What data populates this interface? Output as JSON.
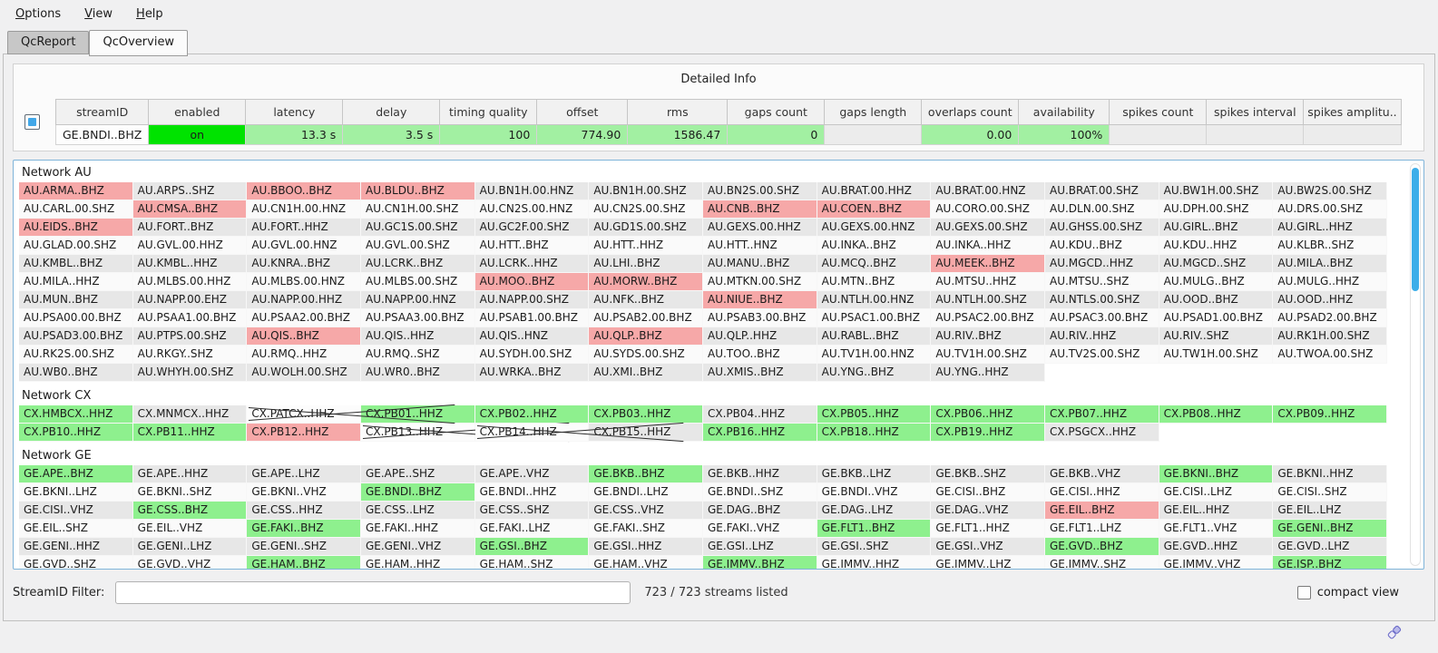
{
  "menu": {
    "items": [
      {
        "label": "Options"
      },
      {
        "label": "View"
      },
      {
        "label": "Help"
      }
    ]
  },
  "tabs": [
    {
      "label": "QcReport",
      "active": false
    },
    {
      "label": "QcOverview",
      "active": true
    }
  ],
  "detail_panel": {
    "title": "Detailed Info",
    "columns": [
      "streamID",
      "enabled",
      "latency",
      "delay",
      "timing quality",
      "offset",
      "rms",
      "gaps count",
      "gaps length",
      "overlaps count",
      "availability",
      "spikes count",
      "spikes interval",
      "spikes amplitu.."
    ],
    "row": {
      "cells": [
        "GE.BNDI..BHZ",
        "on",
        "13.3 s",
        "3.5 s",
        "100",
        "774.90",
        "1586.47",
        "0",
        "",
        "0.00",
        "100%",
        "",
        "",
        ""
      ],
      "cell_styles": [
        "plain",
        "on",
        "val",
        "val",
        "val",
        "val",
        "val",
        "val",
        "empty",
        "val",
        "val",
        "empty",
        "empty",
        "empty"
      ]
    }
  },
  "legend_note": "cell codes: d=default-gray, w=default-white, g=good-green, p=problem-pink, x=disabled-crossed, n=empty",
  "networks": [
    {
      "name": "Network AU",
      "rows": [
        [
          [
            "AU.ARMA..BHZ",
            "p"
          ],
          [
            "AU.ARPS..SHZ",
            "d"
          ],
          [
            "AU.BBOO..BHZ",
            "p"
          ],
          [
            "AU.BLDU..BHZ",
            "p"
          ],
          [
            "AU.BN1H.00.HNZ",
            "d"
          ],
          [
            "AU.BN1H.00.SHZ",
            "d"
          ],
          [
            "AU.BN2S.00.SHZ",
            "d"
          ],
          [
            "AU.BRAT.00.HHZ",
            "d"
          ],
          [
            "AU.BRAT.00.HNZ",
            "d"
          ],
          [
            "AU.BRAT.00.SHZ",
            "d"
          ],
          [
            "AU.BW1H.00.SHZ",
            "d"
          ],
          [
            "AU.BW2S.00.SHZ",
            "d"
          ]
        ],
        [
          [
            "AU.CARL.00.SHZ",
            "w"
          ],
          [
            "AU.CMSA..BHZ",
            "p"
          ],
          [
            "AU.CN1H.00.HNZ",
            "w"
          ],
          [
            "AU.CN1H.00.SHZ",
            "w"
          ],
          [
            "AU.CN2S.00.HNZ",
            "w"
          ],
          [
            "AU.CN2S.00.SHZ",
            "w"
          ],
          [
            "AU.CNB..BHZ",
            "p"
          ],
          [
            "AU.COEN..BHZ",
            "p"
          ],
          [
            "AU.CORO.00.SHZ",
            "w"
          ],
          [
            "AU.DLN.00.SHZ",
            "w"
          ],
          [
            "AU.DPH.00.SHZ",
            "w"
          ],
          [
            "AU.DRS.00.SHZ",
            "w"
          ]
        ],
        [
          [
            "AU.EIDS..BHZ",
            "p"
          ],
          [
            "AU.FORT..BHZ",
            "d"
          ],
          [
            "AU.FORT..HHZ",
            "d"
          ],
          [
            "AU.GC1S.00.SHZ",
            "d"
          ],
          [
            "AU.GC2F.00.SHZ",
            "d"
          ],
          [
            "AU.GD1S.00.SHZ",
            "d"
          ],
          [
            "AU.GEXS.00.HHZ",
            "d"
          ],
          [
            "AU.GEXS.00.HNZ",
            "d"
          ],
          [
            "AU.GEXS.00.SHZ",
            "d"
          ],
          [
            "AU.GHSS.00.SHZ",
            "d"
          ],
          [
            "AU.GIRL..BHZ",
            "d"
          ],
          [
            "AU.GIRL..HHZ",
            "d"
          ]
        ],
        [
          [
            "AU.GLAD.00.SHZ",
            "w"
          ],
          [
            "AU.GVL.00.HHZ",
            "w"
          ],
          [
            "AU.GVL.00.HNZ",
            "w"
          ],
          [
            "AU.GVL.00.SHZ",
            "w"
          ],
          [
            "AU.HTT..BHZ",
            "w"
          ],
          [
            "AU.HTT..HHZ",
            "w"
          ],
          [
            "AU.HTT..HNZ",
            "w"
          ],
          [
            "AU.INKA..BHZ",
            "w"
          ],
          [
            "AU.INKA..HHZ",
            "w"
          ],
          [
            "AU.KDU..BHZ",
            "w"
          ],
          [
            "AU.KDU..HHZ",
            "w"
          ],
          [
            "AU.KLBR..SHZ",
            "w"
          ]
        ],
        [
          [
            "AU.KMBL..BHZ",
            "d"
          ],
          [
            "AU.KMBL..HHZ",
            "d"
          ],
          [
            "AU.KNRA..BHZ",
            "d"
          ],
          [
            "AU.LCRK..BHZ",
            "d"
          ],
          [
            "AU.LCRK..HHZ",
            "d"
          ],
          [
            "AU.LHI..BHZ",
            "d"
          ],
          [
            "AU.MANU..BHZ",
            "d"
          ],
          [
            "AU.MCQ..BHZ",
            "d"
          ],
          [
            "AU.MEEK..BHZ",
            "p"
          ],
          [
            "AU.MGCD..HHZ",
            "d"
          ],
          [
            "AU.MGCD..SHZ",
            "d"
          ],
          [
            "AU.MILA..BHZ",
            "d"
          ]
        ],
        [
          [
            "AU.MILA..HHZ",
            "w"
          ],
          [
            "AU.MLBS.00.HHZ",
            "w"
          ],
          [
            "AU.MLBS.00.HNZ",
            "w"
          ],
          [
            "AU.MLBS.00.SHZ",
            "w"
          ],
          [
            "AU.MOO..BHZ",
            "p"
          ],
          [
            "AU.MORW..BHZ",
            "p"
          ],
          [
            "AU.MTKN.00.SHZ",
            "w"
          ],
          [
            "AU.MTN..BHZ",
            "w"
          ],
          [
            "AU.MTSU..HHZ",
            "w"
          ],
          [
            "AU.MTSU..SHZ",
            "w"
          ],
          [
            "AU.MULG..BHZ",
            "w"
          ],
          [
            "AU.MULG..HHZ",
            "w"
          ]
        ],
        [
          [
            "AU.MUN..BHZ",
            "d"
          ],
          [
            "AU.NAPP.00.EHZ",
            "d"
          ],
          [
            "AU.NAPP.00.HHZ",
            "d"
          ],
          [
            "AU.NAPP.00.HNZ",
            "d"
          ],
          [
            "AU.NAPP.00.SHZ",
            "d"
          ],
          [
            "AU.NFK..BHZ",
            "d"
          ],
          [
            "AU.NIUE..BHZ",
            "p"
          ],
          [
            "AU.NTLH.00.HNZ",
            "d"
          ],
          [
            "AU.NTLH.00.SHZ",
            "d"
          ],
          [
            "AU.NTLS.00.SHZ",
            "d"
          ],
          [
            "AU.OOD..BHZ",
            "d"
          ],
          [
            "AU.OOD..HHZ",
            "d"
          ]
        ],
        [
          [
            "AU.PSA00.00.BHZ",
            "w"
          ],
          [
            "AU.PSAA1.00.BHZ",
            "w"
          ],
          [
            "AU.PSAA2.00.BHZ",
            "w"
          ],
          [
            "AU.PSAA3.00.BHZ",
            "w"
          ],
          [
            "AU.PSAB1.00.BHZ",
            "w"
          ],
          [
            "AU.PSAB2.00.BHZ",
            "w"
          ],
          [
            "AU.PSAB3.00.BHZ",
            "w"
          ],
          [
            "AU.PSAC1.00.BHZ",
            "w"
          ],
          [
            "AU.PSAC2.00.BHZ",
            "w"
          ],
          [
            "AU.PSAC3.00.BHZ",
            "w"
          ],
          [
            "AU.PSAD1.00.BHZ",
            "w"
          ],
          [
            "AU.PSAD2.00.BHZ",
            "w"
          ]
        ],
        [
          [
            "AU.PSAD3.00.BHZ",
            "d"
          ],
          [
            "AU.PTPS.00.SHZ",
            "d"
          ],
          [
            "AU.QIS..BHZ",
            "p"
          ],
          [
            "AU.QIS..HHZ",
            "d"
          ],
          [
            "AU.QIS..HNZ",
            "d"
          ],
          [
            "AU.QLP..BHZ",
            "p"
          ],
          [
            "AU.QLP..HHZ",
            "d"
          ],
          [
            "AU.RABL..BHZ",
            "d"
          ],
          [
            "AU.RIV..BHZ",
            "d"
          ],
          [
            "AU.RIV..HHZ",
            "d"
          ],
          [
            "AU.RIV..SHZ",
            "d"
          ],
          [
            "AU.RK1H.00.SHZ",
            "d"
          ]
        ],
        [
          [
            "AU.RK2S.00.SHZ",
            "w"
          ],
          [
            "AU.RKGY..SHZ",
            "w"
          ],
          [
            "AU.RMQ..HHZ",
            "w"
          ],
          [
            "AU.RMQ..SHZ",
            "w"
          ],
          [
            "AU.SYDH.00.SHZ",
            "w"
          ],
          [
            "AU.SYDS.00.SHZ",
            "w"
          ],
          [
            "AU.TOO..BHZ",
            "w"
          ],
          [
            "AU.TV1H.00.HNZ",
            "w"
          ],
          [
            "AU.TV1H.00.SHZ",
            "w"
          ],
          [
            "AU.TV2S.00.SHZ",
            "w"
          ],
          [
            "AU.TW1H.00.SHZ",
            "w"
          ],
          [
            "AU.TWOA.00.SHZ",
            "w"
          ]
        ],
        [
          [
            "AU.WB0..BHZ",
            "d"
          ],
          [
            "AU.WHYH.00.SHZ",
            "d"
          ],
          [
            "AU.WOLH.00.SHZ",
            "d"
          ],
          [
            "AU.WR0..BHZ",
            "d"
          ],
          [
            "AU.WRKA..BHZ",
            "d"
          ],
          [
            "AU.XMI..BHZ",
            "d"
          ],
          [
            "AU.XMIS..BHZ",
            "d"
          ],
          [
            "AU.YNG..BHZ",
            "d"
          ],
          [
            "AU.YNG..HHZ",
            "d"
          ],
          [
            "",
            "n"
          ],
          [
            "",
            "n"
          ],
          [
            "",
            "n"
          ]
        ]
      ]
    },
    {
      "name": "Network CX",
      "rows": [
        [
          [
            "CX.HMBCX..HHZ",
            "g"
          ],
          [
            "CX.MNMCX..HHZ",
            "d"
          ],
          [
            "CX.PATCX..HHZ",
            "x"
          ],
          [
            "CX.PB01..HHZ",
            "g"
          ],
          [
            "CX.PB02..HHZ",
            "g"
          ],
          [
            "CX.PB03..HHZ",
            "g"
          ],
          [
            "CX.PB04..HHZ",
            "d"
          ],
          [
            "CX.PB05..HHZ",
            "g"
          ],
          [
            "CX.PB06..HHZ",
            "g"
          ],
          [
            "CX.PB07..HHZ",
            "g"
          ],
          [
            "CX.PB08..HHZ",
            "g"
          ],
          [
            "CX.PB09..HHZ",
            "g"
          ]
        ],
        [
          [
            "CX.PB10..HHZ",
            "g"
          ],
          [
            "CX.PB11..HHZ",
            "g"
          ],
          [
            "CX.PB12..HHZ",
            "p"
          ],
          [
            "CX.PB13..HHZ",
            "x"
          ],
          [
            "CX.PB14..HHZ",
            "x"
          ],
          [
            "CX.PB15..HHZ",
            "d"
          ],
          [
            "CX.PB16..HHZ",
            "g"
          ],
          [
            "CX.PB18..HHZ",
            "g"
          ],
          [
            "CX.PB19..HHZ",
            "g"
          ],
          [
            "CX.PSGCX..HHZ",
            "d"
          ],
          [
            "",
            "n"
          ],
          [
            "",
            "n"
          ]
        ]
      ]
    },
    {
      "name": "Network GE",
      "rows": [
        [
          [
            "GE.APE..BHZ",
            "g"
          ],
          [
            "GE.APE..HHZ",
            "d"
          ],
          [
            "GE.APE..LHZ",
            "d"
          ],
          [
            "GE.APE..SHZ",
            "d"
          ],
          [
            "GE.APE..VHZ",
            "d"
          ],
          [
            "GE.BKB..BHZ",
            "g"
          ],
          [
            "GE.BKB..HHZ",
            "d"
          ],
          [
            "GE.BKB..LHZ",
            "d"
          ],
          [
            "GE.BKB..SHZ",
            "d"
          ],
          [
            "GE.BKB..VHZ",
            "d"
          ],
          [
            "GE.BKNI..BHZ",
            "g"
          ],
          [
            "GE.BKNI..HHZ",
            "d"
          ]
        ],
        [
          [
            "GE.BKNI..LHZ",
            "w"
          ],
          [
            "GE.BKNI..SHZ",
            "w"
          ],
          [
            "GE.BKNI..VHZ",
            "w"
          ],
          [
            "GE.BNDI..BHZ",
            "g"
          ],
          [
            "GE.BNDI..HHZ",
            "w"
          ],
          [
            "GE.BNDI..LHZ",
            "w"
          ],
          [
            "GE.BNDI..SHZ",
            "w"
          ],
          [
            "GE.BNDI..VHZ",
            "w"
          ],
          [
            "GE.CISI..BHZ",
            "w"
          ],
          [
            "GE.CISI..HHZ",
            "w"
          ],
          [
            "GE.CISI..LHZ",
            "w"
          ],
          [
            "GE.CISI..SHZ",
            "w"
          ]
        ],
        [
          [
            "GE.CISI..VHZ",
            "d"
          ],
          [
            "GE.CSS..BHZ",
            "g"
          ],
          [
            "GE.CSS..HHZ",
            "d"
          ],
          [
            "GE.CSS..LHZ",
            "d"
          ],
          [
            "GE.CSS..SHZ",
            "d"
          ],
          [
            "GE.CSS..VHZ",
            "d"
          ],
          [
            "GE.DAG..BHZ",
            "d"
          ],
          [
            "GE.DAG..LHZ",
            "d"
          ],
          [
            "GE.DAG..VHZ",
            "d"
          ],
          [
            "GE.EIL..BHZ",
            "p"
          ],
          [
            "GE.EIL..HHZ",
            "d"
          ],
          [
            "GE.EIL..LHZ",
            "d"
          ]
        ],
        [
          [
            "GE.EIL..SHZ",
            "w"
          ],
          [
            "GE.EIL..VHZ",
            "w"
          ],
          [
            "GE.FAKI..BHZ",
            "g"
          ],
          [
            "GE.FAKI..HHZ",
            "w"
          ],
          [
            "GE.FAKI..LHZ",
            "w"
          ],
          [
            "GE.FAKI..SHZ",
            "w"
          ],
          [
            "GE.FAKI..VHZ",
            "w"
          ],
          [
            "GE.FLT1..BHZ",
            "g"
          ],
          [
            "GE.FLT1..HHZ",
            "w"
          ],
          [
            "GE.FLT1..LHZ",
            "w"
          ],
          [
            "GE.FLT1..VHZ",
            "w"
          ],
          [
            "GE.GENI..BHZ",
            "g"
          ]
        ],
        [
          [
            "GE.GENI..HHZ",
            "d"
          ],
          [
            "GE.GENI..LHZ",
            "d"
          ],
          [
            "GE.GENI..SHZ",
            "d"
          ],
          [
            "GE.GENI..VHZ",
            "d"
          ],
          [
            "GE.GSI..BHZ",
            "g"
          ],
          [
            "GE.GSI..HHZ",
            "d"
          ],
          [
            "GE.GSI..LHZ",
            "d"
          ],
          [
            "GE.GSI..SHZ",
            "d"
          ],
          [
            "GE.GSI..VHZ",
            "d"
          ],
          [
            "GE.GVD..BHZ",
            "g"
          ],
          [
            "GE.GVD..HHZ",
            "d"
          ],
          [
            "GE.GVD..LHZ",
            "d"
          ]
        ],
        [
          [
            "GE.GVD..SHZ",
            "w"
          ],
          [
            "GE.GVD..VHZ",
            "w"
          ],
          [
            "GE.HAM..BHZ",
            "g"
          ],
          [
            "GE.HAM..HHZ",
            "w"
          ],
          [
            "GE.HAM..SHZ",
            "w"
          ],
          [
            "GE.HAM..VHZ",
            "w"
          ],
          [
            "GE.IMMV..BHZ",
            "g"
          ],
          [
            "GE.IMMV..HHZ",
            "w"
          ],
          [
            "GE.IMMV..LHZ",
            "w"
          ],
          [
            "GE.IMMV..SHZ",
            "w"
          ],
          [
            "GE.IMMV..VHZ",
            "w"
          ],
          [
            "GE.ISP..BHZ",
            "g"
          ]
        ]
      ]
    }
  ],
  "filter_bar": {
    "label": "StreamID Filter:",
    "input_value": "",
    "status": "723 / 723 streams listed",
    "compact_label": "compact view",
    "compact_checked": false
  },
  "icons": {
    "detail_checkbox": "blue-selection-checkbox",
    "connection_status": "messaging-connection-plug"
  },
  "colors": {
    "good_green": "#8ef08e",
    "problem_pink": "#f6a8a8",
    "enabled_green": "#00e300",
    "value_green": "#a2f0a2",
    "scrollbar_blue": "#3daee9",
    "panel_border_blue": "#7fb4d9"
  }
}
